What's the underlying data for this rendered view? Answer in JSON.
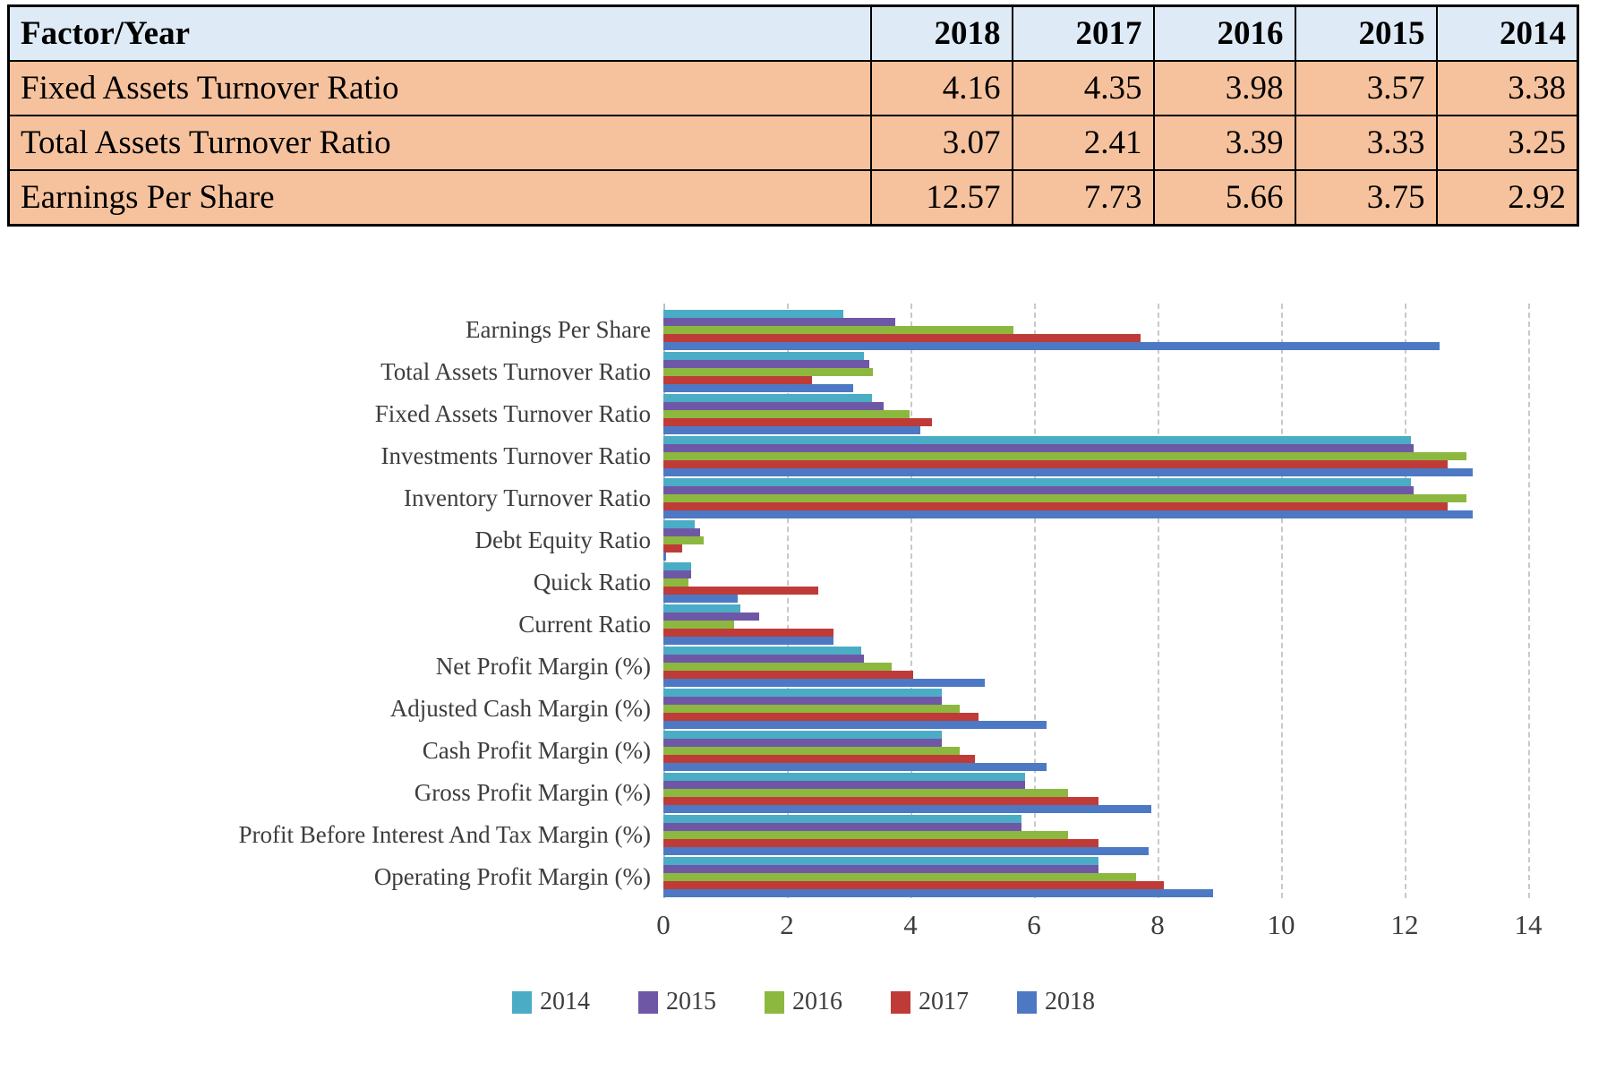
{
  "table": {
    "header_bg": "#DEEAF6",
    "row_bg": "#F6C29D",
    "header": [
      "Factor/Year",
      "2018",
      "2017",
      "2016",
      "2015",
      "2014"
    ],
    "rows": [
      {
        "label": "Fixed Assets Turnover Ratio",
        "values": [
          "4.16",
          "4.35",
          "3.98",
          "3.57",
          "3.38"
        ]
      },
      {
        "label": "Total Assets Turnover Ratio",
        "values": [
          "3.07",
          "2.41",
          "3.39",
          "3.33",
          "3.25"
        ]
      },
      {
        "label": "Earnings Per Share",
        "values": [
          "12.57",
          "7.73",
          "5.66",
          "3.75",
          "2.92"
        ]
      }
    ]
  },
  "chart_data": {
    "type": "bar",
    "orientation": "horizontal",
    "title": "",
    "xlabel": "",
    "ylabel": "",
    "xlim": [
      0,
      14
    ],
    "xticks": [
      0,
      2,
      4,
      6,
      8,
      10,
      12,
      14
    ],
    "grid": "vertical-dashed",
    "legend_position": "bottom",
    "categories": [
      "Earnings Per Share",
      "Total Assets Turnover Ratio",
      "Fixed Assets Turnover Ratio",
      "Investments Turnover Ratio",
      "Inventory Turnover Ratio",
      "Debt Equity Ratio",
      "Quick Ratio",
      "Current Ratio",
      "Net Profit Margin (%)",
      "Adjusted Cash Margin (%)",
      "Cash Profit Margin (%)",
      "Gross Profit Margin (%)",
      "Profit Before Interest And Tax Margin (%)",
      "Operating Profit Margin (%)"
    ],
    "series": [
      {
        "name": "2014",
        "color": "#4BACC6",
        "values": [
          2.92,
          3.25,
          3.38,
          12.1,
          12.1,
          0.5,
          0.45,
          1.25,
          3.2,
          4.5,
          4.5,
          5.85,
          5.8,
          7.05
        ]
      },
      {
        "name": "2015",
        "color": "#6E58A6",
        "values": [
          3.75,
          3.33,
          3.57,
          12.15,
          12.15,
          0.6,
          0.45,
          1.55,
          3.25,
          4.5,
          4.5,
          5.85,
          5.8,
          7.05
        ]
      },
      {
        "name": "2016",
        "color": "#8DB83F",
        "values": [
          5.66,
          3.39,
          3.98,
          13.0,
          13.0,
          0.65,
          0.4,
          1.15,
          3.7,
          4.8,
          4.8,
          6.55,
          6.55,
          7.65
        ]
      },
      {
        "name": "2017",
        "color": "#BF3B38",
        "values": [
          7.73,
          2.41,
          4.35,
          12.7,
          12.7,
          0.3,
          2.5,
          2.75,
          4.05,
          5.1,
          5.05,
          7.05,
          7.05,
          8.1
        ]
      },
      {
        "name": "2018",
        "color": "#4D79C4",
        "values": [
          12.57,
          3.07,
          4.16,
          13.1,
          13.1,
          0.05,
          1.2,
          2.75,
          5.2,
          6.2,
          6.2,
          7.9,
          7.85,
          8.9
        ]
      }
    ]
  }
}
